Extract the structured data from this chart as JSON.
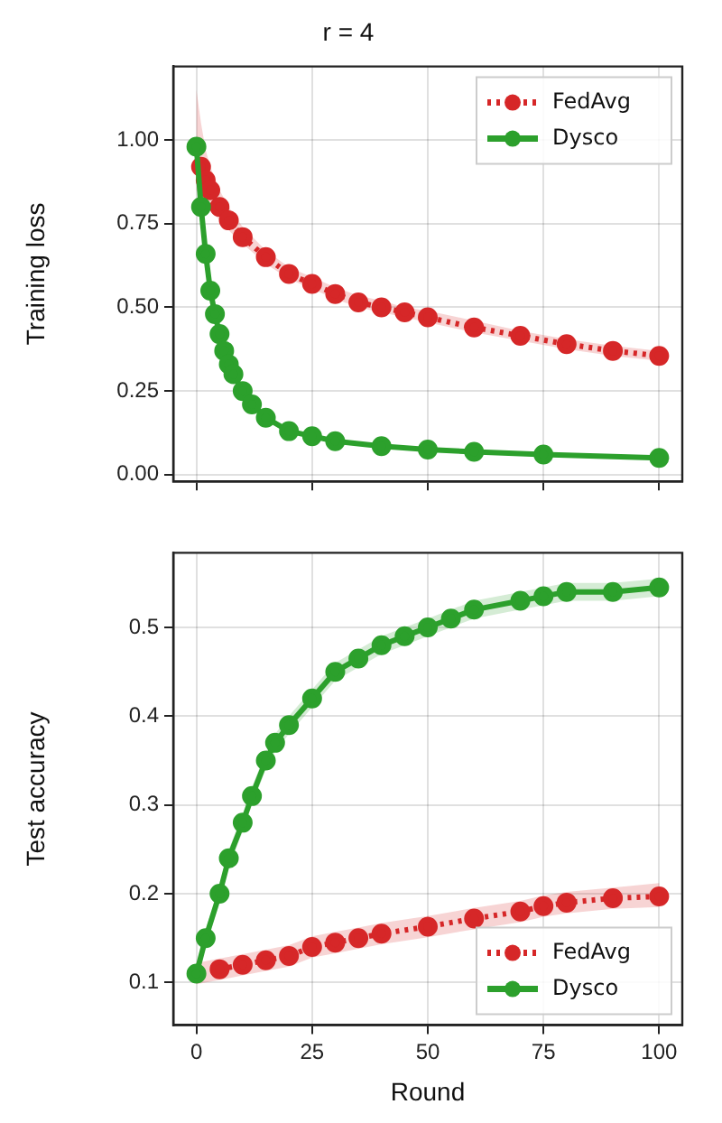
{
  "chart_data": [
    {
      "type": "line",
      "title": "r = 4",
      "ylabel": "Training loss",
      "xlim": [
        -5,
        105
      ],
      "ylim": [
        -0.02,
        1.22
      ],
      "xticks": [
        0,
        25,
        50,
        75,
        100
      ],
      "yticks": [
        {
          "value": 0,
          "label": "0.00"
        },
        {
          "value": 0.25,
          "label": "0.25"
        },
        {
          "value": 0.5,
          "label": "0.50"
        },
        {
          "value": 0.75,
          "label": "0.75"
        },
        {
          "value": 1,
          "label": "1.00"
        }
      ],
      "tick_labels": "y",
      "grid": true,
      "legend": "top right",
      "marker": "circle",
      "series": [
        {
          "name": "FedAvg",
          "color": "#d62728",
          "line_style": "dotted",
          "x": [
            0,
            1,
            2,
            3,
            5,
            7,
            10,
            15,
            20,
            25,
            30,
            35,
            40,
            45,
            50,
            60,
            70,
            80,
            90,
            100
          ],
          "values": [
            null,
            0.92,
            0.88,
            0.85,
            0.8,
            0.76,
            0.71,
            0.65,
            0.6,
            0.57,
            0.54,
            0.515,
            0.5,
            0.485,
            0.47,
            0.44,
            0.415,
            0.39,
            0.37,
            0.355
          ],
          "lower": [
            0.85,
            0.83,
            0.81,
            0.79,
            0.76,
            0.73,
            0.69,
            0.63,
            0.585,
            0.555,
            0.525,
            0.5,
            0.485,
            0.47,
            0.455,
            0.425,
            0.4,
            0.375,
            0.355,
            0.34
          ],
          "upper": [
            1.15,
            1.05,
            0.97,
            0.92,
            0.85,
            0.8,
            0.74,
            0.67,
            0.62,
            0.59,
            0.56,
            0.535,
            0.52,
            0.5,
            0.49,
            0.46,
            0.43,
            0.405,
            0.385,
            0.37
          ]
        },
        {
          "name": "Dysco",
          "color": "#2ca02c",
          "line_style": "solid",
          "x": [
            0,
            1,
            2,
            3,
            4,
            5,
            6,
            7,
            8,
            10,
            12,
            15,
            20,
            25,
            30,
            40,
            50,
            60,
            75,
            100
          ],
          "values": [
            0.98,
            0.8,
            0.66,
            0.55,
            0.48,
            0.42,
            0.37,
            0.33,
            0.3,
            0.25,
            0.21,
            0.17,
            0.13,
            0.115,
            0.1,
            0.085,
            0.075,
            0.068,
            0.06,
            0.05
          ]
        }
      ]
    },
    {
      "type": "line",
      "xlabel": "Round",
      "ylabel": "Test accuracy",
      "xlim": [
        -5,
        105
      ],
      "ylim": [
        0.052,
        0.584
      ],
      "xticks": [
        0,
        25,
        50,
        75,
        100
      ],
      "yticks": [
        0.1,
        0.2,
        0.3,
        0.4,
        0.5
      ],
      "grid": true,
      "legend": "bottom right",
      "marker": "circle",
      "series": [
        {
          "name": "FedAvg",
          "color": "#d62728",
          "line_style": "dotted",
          "x": [
            0,
            5,
            10,
            15,
            20,
            25,
            30,
            35,
            40,
            50,
            60,
            70,
            75,
            80,
            90,
            100
          ],
          "values": [
            null,
            0.115,
            0.12,
            0.125,
            0.13,
            0.14,
            0.145,
            0.15,
            0.155,
            0.163,
            0.172,
            0.18,
            0.186,
            0.19,
            0.195,
            0.197
          ],
          "lower": [
            0.098,
            0.103,
            0.108,
            0.113,
            0.118,
            0.128,
            0.133,
            0.138,
            0.143,
            0.151,
            0.16,
            0.168,
            0.174,
            0.178,
            0.183,
            0.185
          ],
          "upper": [
            0.122,
            0.127,
            0.132,
            0.137,
            0.142,
            0.152,
            0.157,
            0.162,
            0.167,
            0.175,
            0.184,
            0.192,
            0.198,
            0.202,
            0.207,
            0.212
          ]
        },
        {
          "name": "Dysco",
          "color": "#2ca02c",
          "line_style": "solid",
          "x": [
            0,
            2,
            5,
            7,
            10,
            12,
            15,
            17,
            20,
            25,
            30,
            35,
            40,
            45,
            50,
            55,
            60,
            70,
            75,
            80,
            90,
            100
          ],
          "values": [
            0.11,
            0.15,
            0.2,
            0.24,
            0.28,
            0.31,
            0.35,
            0.37,
            0.39,
            0.42,
            0.45,
            0.465,
            0.48,
            0.49,
            0.5,
            0.51,
            0.52,
            0.53,
            0.535,
            0.54,
            0.54,
            0.545
          ],
          "lower": [
            0.1,
            0.14,
            0.19,
            0.23,
            0.27,
            0.3,
            0.34,
            0.36,
            0.38,
            0.41,
            0.44,
            0.455,
            0.47,
            0.48,
            0.49,
            0.5,
            0.51,
            0.52,
            0.525,
            0.53,
            0.53,
            0.535
          ],
          "upper": [
            0.12,
            0.16,
            0.21,
            0.25,
            0.29,
            0.32,
            0.36,
            0.38,
            0.4,
            0.43,
            0.46,
            0.475,
            0.49,
            0.5,
            0.51,
            0.52,
            0.53,
            0.54,
            0.545,
            0.55,
            0.55,
            0.555
          ]
        }
      ]
    }
  ]
}
